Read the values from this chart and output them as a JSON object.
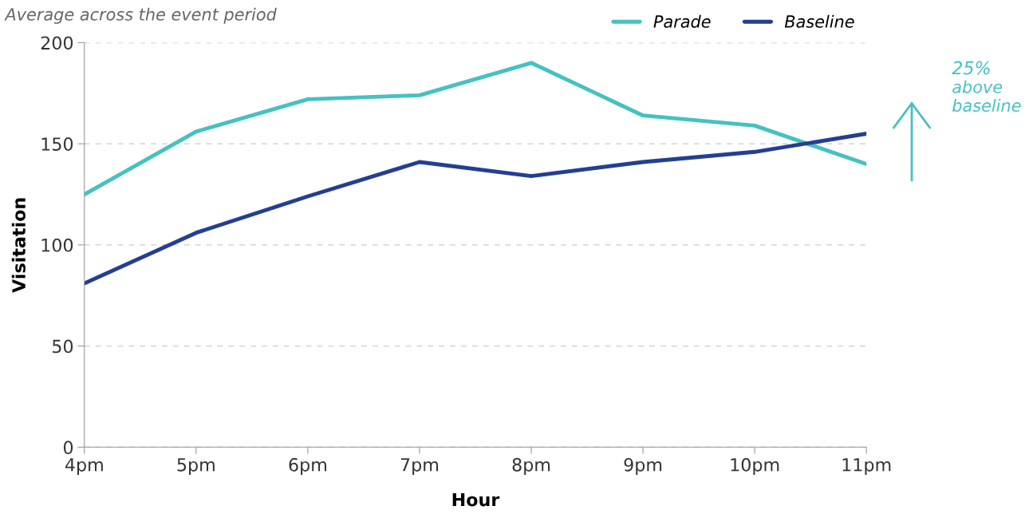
{
  "chart_data": {
    "type": "line",
    "subtitle": "Average across the event period",
    "xlabel": "Hour",
    "ylabel": "Visitation",
    "categories": [
      "4pm",
      "5pm",
      "6pm",
      "7pm",
      "8pm",
      "9pm",
      "10pm",
      "11pm"
    ],
    "series": [
      {
        "name": "Parade",
        "color": "#45c1c0",
        "values": [
          125,
          156,
          172,
          174,
          190,
          164,
          159,
          140
        ]
      },
      {
        "name": "Baseline",
        "color": "#243e92",
        "values": [
          81,
          106,
          124,
          141,
          134,
          141,
          146,
          155
        ]
      }
    ],
    "ylim": [
      0,
      200
    ],
    "yticks": [
      0,
      50,
      100,
      150,
      200
    ],
    "grid": "y",
    "legend": "top right",
    "marker": "none",
    "line_style": "solid",
    "annotations": [
      "25%",
      "above baseline"
    ]
  }
}
